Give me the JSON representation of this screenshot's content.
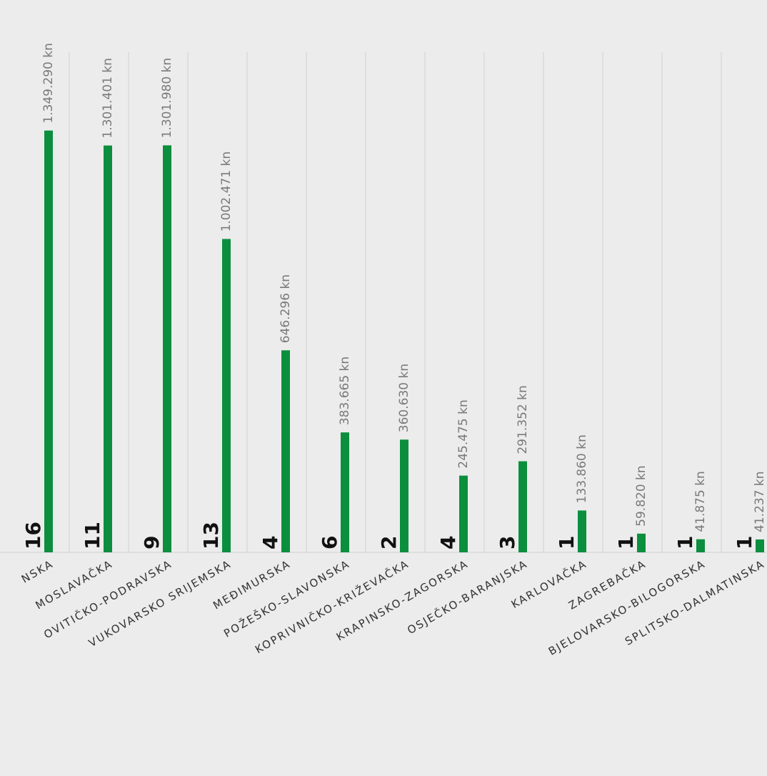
{
  "chart_data": {
    "type": "bar",
    "categories": [
      "NSKA",
      "MOSLAVAČKA",
      "OVITIČKO-PODRAVSKA",
      "VUKOVARSKO SRIJEMSKA",
      "MEĐIMURSKA",
      "POŽEŠKO-SLAVONSKA",
      "KOPRIVNIČKO-KRIŽEVAČKA",
      "KRAPINSKO-ZAGORSKA",
      "OSJEČKO-BARANJSKA",
      "KARLOVAČKA",
      "ZAGREBAČKA",
      "BJELOVARSKO-BILOGORSKA",
      "SPLITSKO-DALMATINSKA"
    ],
    "values": [
      1349290,
      1301401,
      1301980,
      1002471,
      646296,
      383665,
      360630,
      245475,
      291352,
      133860,
      59820,
      41875,
      41237
    ],
    "value_labels": [
      "1.349.290 kn",
      "1.301.401 kn",
      "1.301.980 kn",
      "1.002.471 kn",
      "646.296 kn",
      "383.665 kn",
      "360.630 kn",
      "245.475 kn",
      "291.352 kn",
      "133.860 kn",
      "59.820 kn",
      "41.875 kn",
      "41.237 kn"
    ],
    "counts": [
      16,
      11,
      9,
      13,
      4,
      6,
      2,
      4,
      3,
      1,
      1,
      1,
      1
    ],
    "color": "#0b8f3e",
    "ylim": [
      0,
      1600000
    ]
  }
}
